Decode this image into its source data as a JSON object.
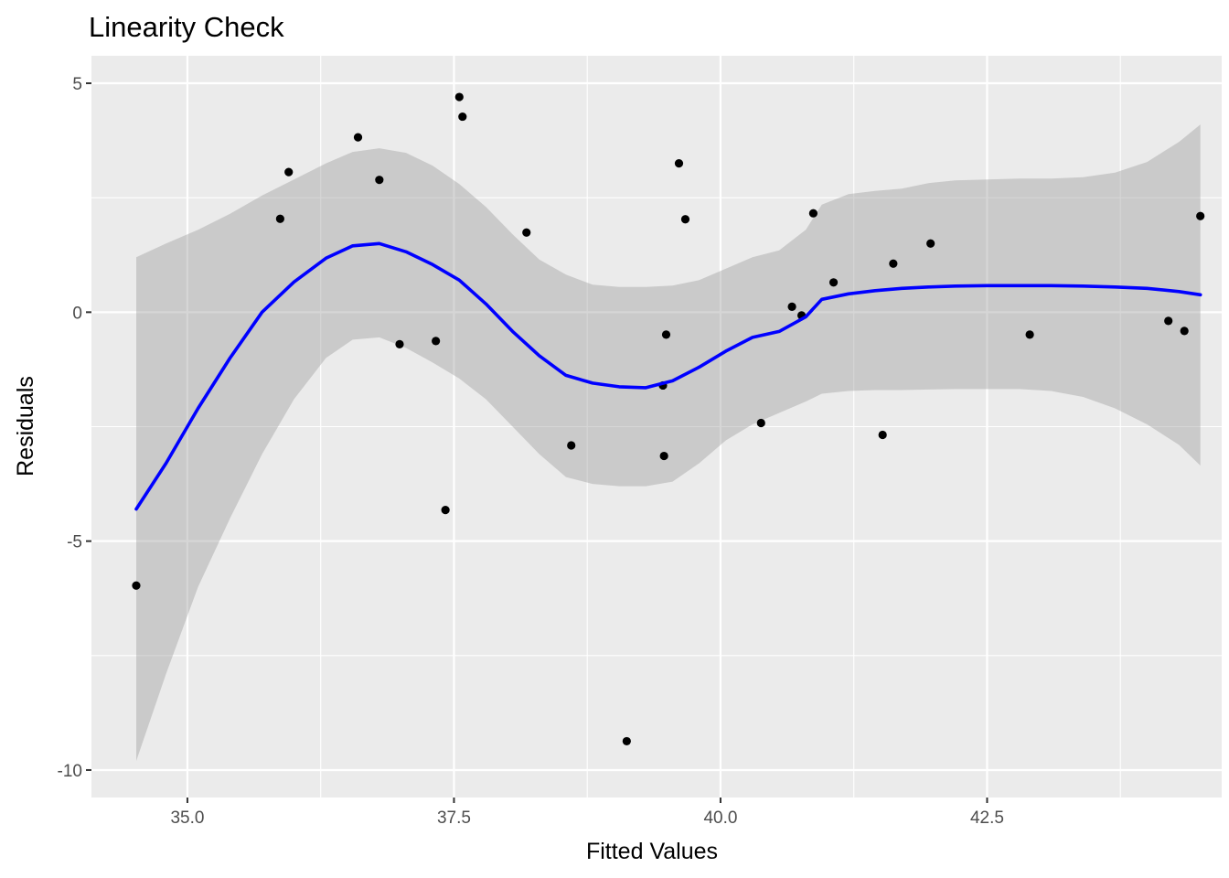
{
  "chart_data": {
    "type": "scatter",
    "title": "Linearity Check",
    "xlabel": "Fitted Values",
    "ylabel": "Residuals",
    "xlim": [
      34.1,
      44.7
    ],
    "ylim": [
      -10.6,
      5.6
    ],
    "x_ticks": [
      35.0,
      37.5,
      40.0,
      42.5
    ],
    "x_tick_labels": [
      "35.0",
      "37.5",
      "40.0",
      "42.5"
    ],
    "y_ticks": [
      5,
      0,
      -5,
      -10
    ],
    "y_tick_labels": [
      "5",
      "0",
      "-5",
      "-10"
    ],
    "grid": true,
    "panel_background": "#ebebeb",
    "grid_color": "#ffffff",
    "point_color": "#000000",
    "smooth_color": "#0000ff",
    "band_color": "#999999",
    "points": [
      {
        "x": 34.52,
        "y": -5.97
      },
      {
        "x": 35.87,
        "y": 2.04
      },
      {
        "x": 35.95,
        "y": 3.06
      },
      {
        "x": 36.6,
        "y": 3.82
      },
      {
        "x": 36.8,
        "y": 2.89
      },
      {
        "x": 36.99,
        "y": -0.7
      },
      {
        "x": 37.33,
        "y": -0.63
      },
      {
        "x": 37.42,
        "y": -4.32
      },
      {
        "x": 37.55,
        "y": 4.7
      },
      {
        "x": 37.58,
        "y": 4.27
      },
      {
        "x": 38.18,
        "y": 1.74
      },
      {
        "x": 38.6,
        "y": -2.91
      },
      {
        "x": 39.12,
        "y": -9.37
      },
      {
        "x": 39.46,
        "y": -1.6
      },
      {
        "x": 39.47,
        "y": -3.14
      },
      {
        "x": 39.49,
        "y": -0.49
      },
      {
        "x": 39.61,
        "y": 3.25
      },
      {
        "x": 39.67,
        "y": 2.03
      },
      {
        "x": 40.38,
        "y": -2.42
      },
      {
        "x": 40.67,
        "y": 0.12
      },
      {
        "x": 40.76,
        "y": -0.07
      },
      {
        "x": 40.87,
        "y": 2.16
      },
      {
        "x": 41.06,
        "y": 0.65
      },
      {
        "x": 41.52,
        "y": -2.68
      },
      {
        "x": 41.62,
        "y": 1.06
      },
      {
        "x": 41.97,
        "y": 1.5
      },
      {
        "x": 42.9,
        "y": -0.49
      },
      {
        "x": 44.2,
        "y": -0.19
      },
      {
        "x": 44.35,
        "y": -0.41
      },
      {
        "x": 44.5,
        "y": 2.1
      }
    ],
    "smooth": {
      "x": [
        34.52,
        34.8,
        35.1,
        35.4,
        35.7,
        36.0,
        36.3,
        36.55,
        36.8,
        37.05,
        37.3,
        37.55,
        37.8,
        38.05,
        38.3,
        38.55,
        38.8,
        39.05,
        39.3,
        39.55,
        39.8,
        40.05,
        40.3,
        40.55,
        40.8,
        40.95,
        41.2,
        41.45,
        41.7,
        41.95,
        42.2,
        42.5,
        42.8,
        43.1,
        43.4,
        43.7,
        44.0,
        44.3,
        44.5
      ],
      "y": [
        -4.3,
        -3.3,
        -2.1,
        -1.0,
        0.0,
        0.66,
        1.18,
        1.45,
        1.5,
        1.32,
        1.04,
        0.7,
        0.18,
        -0.42,
        -0.95,
        -1.38,
        -1.55,
        -1.63,
        -1.65,
        -1.5,
        -1.2,
        -0.85,
        -0.55,
        -0.42,
        -0.1,
        0.28,
        0.4,
        0.47,
        0.52,
        0.55,
        0.57,
        0.58,
        0.58,
        0.58,
        0.57,
        0.55,
        0.52,
        0.45,
        0.38
      ],
      "lower": [
        -9.8,
        -7.9,
        -6.0,
        -4.5,
        -3.1,
        -1.9,
        -1.0,
        -0.6,
        -0.55,
        -0.78,
        -1.1,
        -1.45,
        -1.9,
        -2.5,
        -3.1,
        -3.6,
        -3.75,
        -3.8,
        -3.8,
        -3.7,
        -3.3,
        -2.8,
        -2.45,
        -2.2,
        -1.95,
        -1.78,
        -1.72,
        -1.7,
        -1.7,
        -1.69,
        -1.68,
        -1.68,
        -1.68,
        -1.72,
        -1.85,
        -2.1,
        -2.45,
        -2.9,
        -3.35
      ],
      "upper": [
        1.2,
        1.5,
        1.8,
        2.15,
        2.55,
        2.9,
        3.25,
        3.5,
        3.58,
        3.48,
        3.2,
        2.8,
        2.3,
        1.7,
        1.15,
        0.82,
        0.6,
        0.55,
        0.55,
        0.58,
        0.7,
        0.95,
        1.2,
        1.35,
        1.8,
        2.35,
        2.58,
        2.65,
        2.7,
        2.82,
        2.88,
        2.9,
        2.92,
        2.92,
        2.95,
        3.05,
        3.28,
        3.72,
        4.1
      ]
    }
  }
}
